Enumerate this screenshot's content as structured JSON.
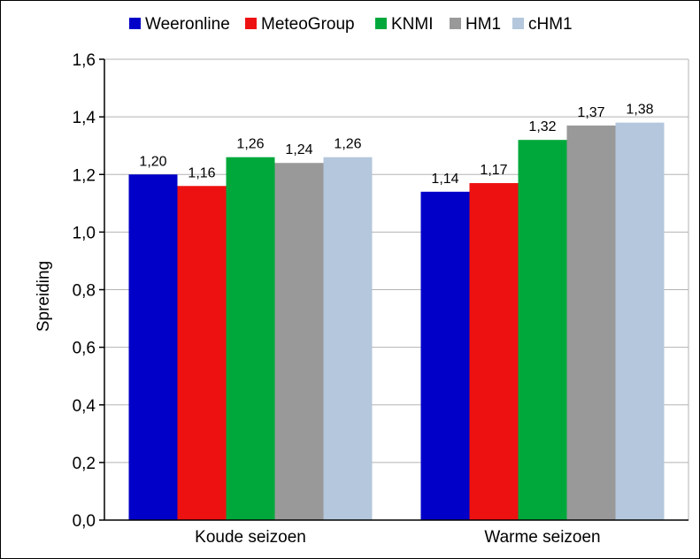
{
  "chart_data": {
    "type": "bar",
    "categories": [
      "Koude seizoen",
      "Warme seizoen"
    ],
    "series": [
      {
        "name": "Weeronline",
        "color": "#0000c8",
        "values": [
          1.2,
          1.14
        ],
        "labels": [
          "1,20",
          "1,14"
        ]
      },
      {
        "name": "MeteoGroup",
        "color": "#ee1111",
        "values": [
          1.16,
          1.17
        ],
        "labels": [
          "1,16",
          "1,17"
        ]
      },
      {
        "name": "KNMI",
        "color": "#00a83c",
        "values": [
          1.26,
          1.32
        ],
        "labels": [
          "1,26",
          "1,32"
        ]
      },
      {
        "name": "HM1",
        "color": "#999999",
        "values": [
          1.24,
          1.37
        ],
        "labels": [
          "1,24",
          "1,37"
        ]
      },
      {
        "name": "cHM1",
        "color": "#b4c7dc",
        "values": [
          1.26,
          1.38
        ],
        "labels": [
          "1,26",
          "1,38"
        ]
      }
    ],
    "ylabel": "Spreiding",
    "xlabel": "",
    "ylim": [
      0,
      1.6
    ],
    "yticks": [
      0,
      0.2,
      0.4,
      0.6,
      0.8,
      1.0,
      1.2,
      1.4,
      1.6
    ],
    "ytick_labels": [
      "0,0",
      "0,2",
      "0,4",
      "0,6",
      "0,8",
      "1,0",
      "1,2",
      "1,4",
      "1,6"
    ],
    "grid": true,
    "legend_position": "top"
  }
}
